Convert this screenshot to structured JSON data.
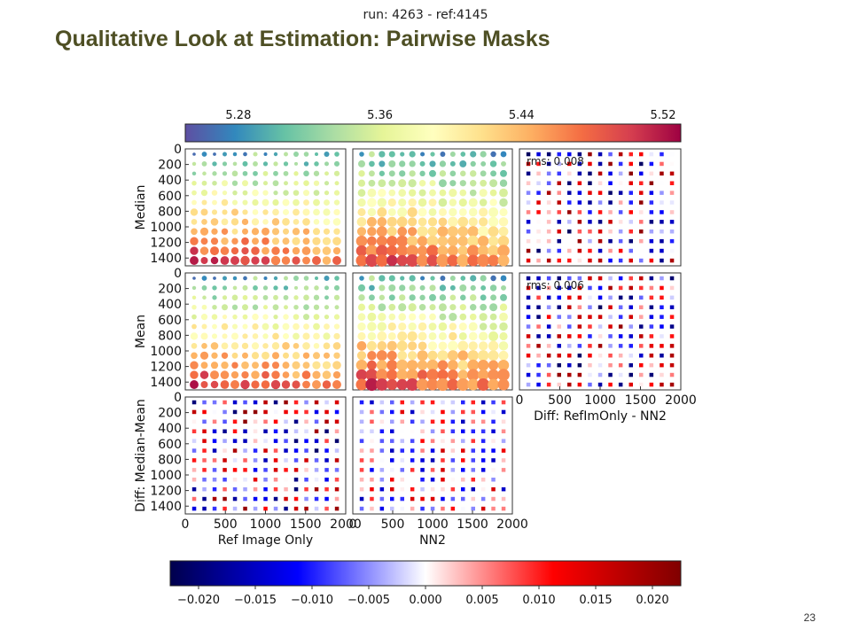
{
  "slide": {
    "title": "Qualitative Look at Estimation: Pairwise Masks",
    "run_label": "run: 4263 - ref:4145",
    "page_number": "23"
  },
  "chart_data": {
    "type": "heatmap",
    "top_colorbar": {
      "ticks": [
        "5.28",
        "5.36",
        "5.44",
        "5.52"
      ],
      "tick_values": [
        5.28,
        5.36,
        5.44,
        5.52
      ],
      "range": [
        5.25,
        5.53
      ],
      "colormap": "Spectral_r"
    },
    "bottom_colorbar": {
      "ticks": [
        "−0.020",
        "−0.015",
        "−0.010",
        "−0.005",
        "0.000",
        "0.005",
        "0.010",
        "0.015",
        "0.020"
      ],
      "tick_values": [
        -0.02,
        -0.015,
        -0.01,
        -0.005,
        0.0,
        0.005,
        0.01,
        0.015,
        0.02
      ],
      "range": [
        -0.0225,
        0.0225
      ],
      "colormap": "seismic"
    },
    "x_ticks": [
      "0",
      "500",
      "1000",
      "1500",
      "2000"
    ],
    "x_tick_values": [
      0,
      500,
      1000,
      1500,
      2000
    ],
    "x_range": [
      0,
      2000
    ],
    "y_ticks": [
      "0",
      "200",
      "400",
      "600",
      "800",
      "1000",
      "1200",
      "1400"
    ],
    "y_tick_values": [
      0,
      200,
      400,
      600,
      800,
      1000,
      1200,
      1400
    ],
    "y_range": [
      0,
      1500
    ],
    "grid_points": {
      "columns": 15,
      "rows": 12
    },
    "row_labels": [
      "Median",
      "Mean",
      "Diff: Median-Mean"
    ],
    "col_labels": [
      "Ref Image Only",
      "NN2",
      "Diff: RefImOnly - NN2"
    ],
    "rms_labels": [
      "rms: 0.008",
      "rms: 0.006"
    ]
  }
}
